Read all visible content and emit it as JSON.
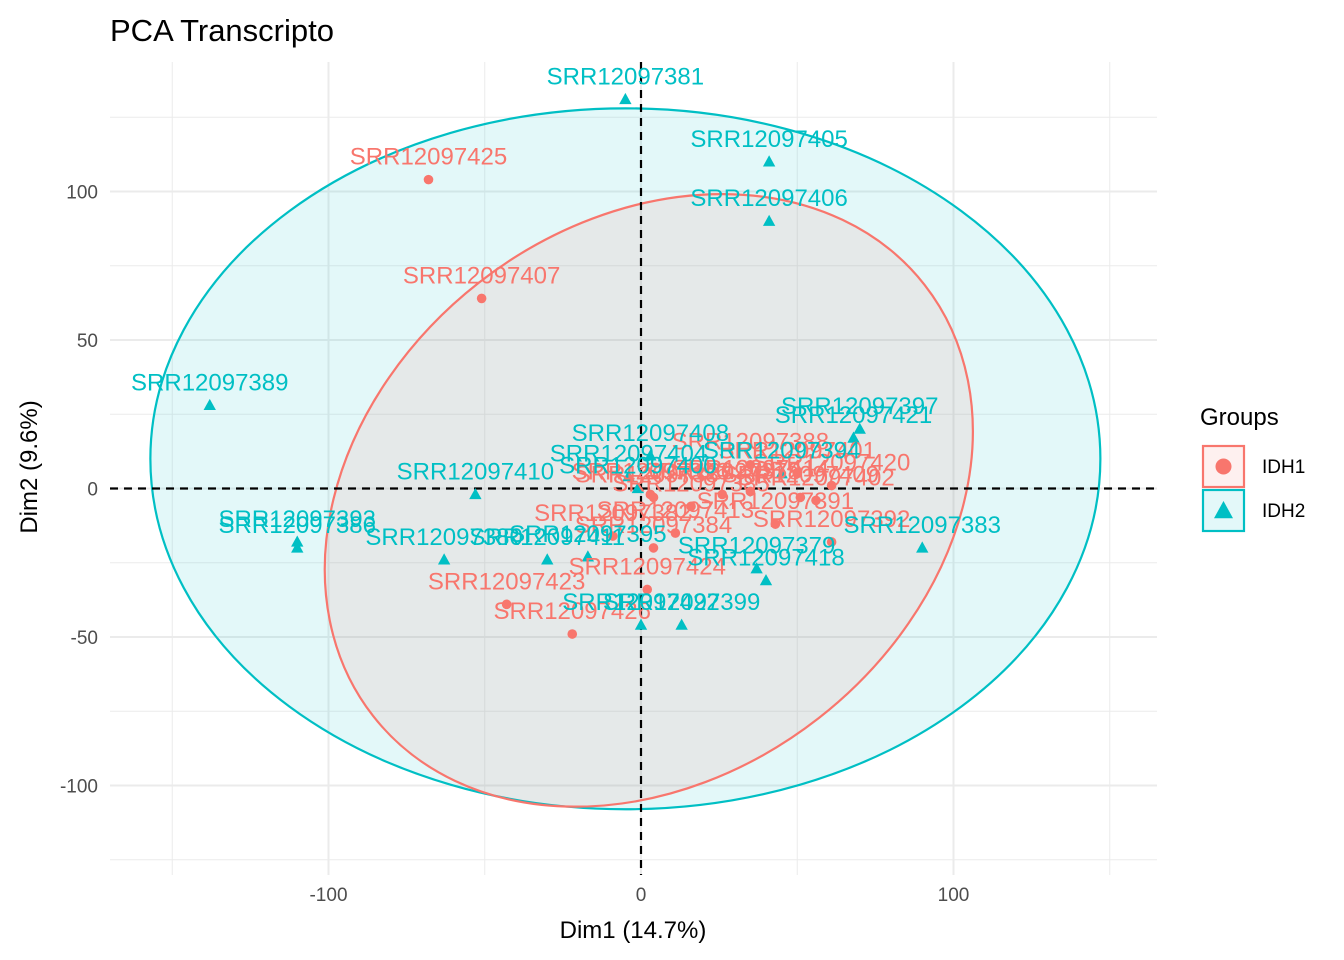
{
  "chart_data": {
    "type": "scatter",
    "title": "PCA Transcripto",
    "xlabel": "Dim1 (14.7%)",
    "ylabel": "Dim2 (9.6%)",
    "xlim": [
      -150,
      150
    ],
    "ylim": [
      -125,
      125
    ],
    "x_ticks": [
      -100,
      0,
      100
    ],
    "y_ticks": [
      100,
      50,
      0,
      -50,
      -100
    ],
    "x_tick_labels": [
      "-100",
      "0",
      "100"
    ],
    "y_tick_labels": [
      "100",
      "50",
      "0",
      "-50",
      "-100"
    ],
    "grid": true,
    "reference_lines": {
      "x": 0,
      "y": 0,
      "style": "dashed"
    },
    "legend": {
      "title": "Groups",
      "position": "right"
    },
    "series": [
      {
        "name": "IDH1",
        "color": "#F8766D",
        "marker": "circle",
        "ellipse": {
          "center": [
            2.5,
            -4
          ],
          "rx": 112,
          "ry": 93,
          "rotation_deg": 142
        },
        "points": [
          {
            "label": "SRR12097425",
            "x": -68,
            "y": 104
          },
          {
            "label": "SRR12097407",
            "x": -51,
            "y": 64
          },
          {
            "label": "SRR12097423",
            "x": -43,
            "y": -39
          },
          {
            "label": "SRR12097426",
            "x": -22,
            "y": -49
          },
          {
            "label": "SRR12097396",
            "x": 3,
            "y": -2
          },
          {
            "label": "SRR12097387",
            "x": 4,
            "y": -3
          },
          {
            "label": "SRR12097384",
            "x": 4,
            "y": -20
          },
          {
            "label": "SRR12097424",
            "x": 2,
            "y": -34
          },
          {
            "label": "SRR12097414",
            "x": 35,
            "y": -1
          },
          {
            "label": "SRR12097378",
            "x": 26,
            "y": -2
          },
          {
            "label": "SRR12097401",
            "x": 50,
            "y": 5
          },
          {
            "label": "SRR12097420",
            "x": 61,
            "y": 1
          },
          {
            "label": "SRR12097409",
            "x": 51,
            "y": -3
          },
          {
            "label": "SRR12097402",
            "x": 56,
            "y": -4
          },
          {
            "label": "SRR12097391",
            "x": 43,
            "y": -12
          },
          {
            "label": "SRR12097392",
            "x": 61,
            "y": -18
          },
          {
            "label": "SRR12097388",
            "x": 35,
            "y": 8
          },
          {
            "label": "SRR12097382",
            "x": -9,
            "y": -16
          },
          {
            "label": "SRR12097413",
            "x": 11,
            "y": -15
          },
          {
            "label": "SRR12097385",
            "x": 16,
            "y": -6
          }
        ]
      },
      {
        "name": "IDH2",
        "color": "#00BFC4",
        "marker": "triangle",
        "ellipse": {
          "center": [
            -5,
            10
          ],
          "rx": 152,
          "ry": 118,
          "rotation_deg": 0
        },
        "points": [
          {
            "label": "SRR12097381",
            "x": -5,
            "y": 131
          },
          {
            "label": "SRR12097405",
            "x": 41,
            "y": 110
          },
          {
            "label": "SRR12097406",
            "x": 41,
            "y": 90
          },
          {
            "label": "SRR12097389",
            "x": -138,
            "y": 28
          },
          {
            "label": "SRR12097397",
            "x": 70,
            "y": 20
          },
          {
            "label": "SRR12097421",
            "x": 68,
            "y": 17
          },
          {
            "label": "SRR12097394",
            "x": 45,
            "y": 5
          },
          {
            "label": "SRR12097408",
            "x": 3,
            "y": 11
          },
          {
            "label": "SRR12097410",
            "x": -53,
            "y": -2
          },
          {
            "label": "SRR12097404",
            "x": -4,
            "y": 4
          },
          {
            "label": "SRR12097400",
            "x": -1,
            "y": 0
          },
          {
            "label": "SRR12097393",
            "x": -110,
            "y": -18
          },
          {
            "label": "SRR12097386",
            "x": -110,
            "y": -20
          },
          {
            "label": "SRR12097380",
            "x": -63,
            "y": -24
          },
          {
            "label": "SRR12097411",
            "x": -30,
            "y": -24
          },
          {
            "label": "SRR12097395",
            "x": -17,
            "y": -23
          },
          {
            "label": "SRR12097383",
            "x": 90,
            "y": -20
          },
          {
            "label": "SRR12097379",
            "x": 37,
            "y": -27
          },
          {
            "label": "SRR12097418",
            "x": 40,
            "y": -31
          },
          {
            "label": "SRR12097422",
            "x": 0,
            "y": -46
          },
          {
            "label": "SRR12097399",
            "x": 13,
            "y": -46
          }
        ]
      }
    ]
  }
}
